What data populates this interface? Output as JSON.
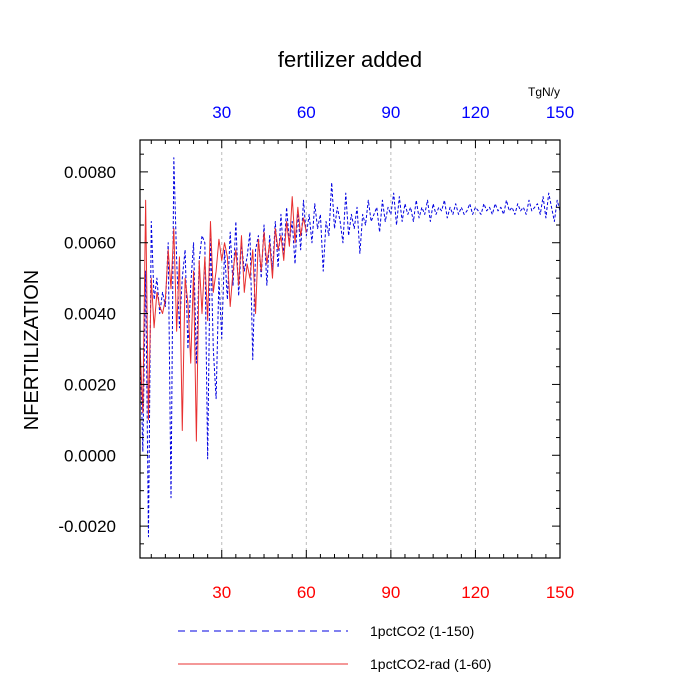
{
  "chart_data": {
    "type": "line",
    "title": "fertilizer added",
    "ylabel": "NFERTILIZATION",
    "top_axis_unit": "TgN/y",
    "xlim": [
      1,
      150
    ],
    "ylim": [
      -0.0029,
      0.0089
    ],
    "x_ticks": [
      30,
      60,
      90,
      120,
      150
    ],
    "y_ticks": [
      -0.002,
      0.0,
      0.002,
      0.004,
      0.006,
      0.008
    ],
    "y_tick_labels": [
      "-0.0020",
      "0.0000",
      "0.0020",
      "0.0040",
      "0.0060",
      "0.0080"
    ],
    "grid": "vertical dashed at x ticks",
    "colors": {
      "series1": "#0000e0",
      "series2": "#e83030",
      "bottom_ticks": "#ff0000",
      "top_ticks": "#0000ff",
      "grid": "#bbbbbb"
    },
    "series": [
      {
        "name": "1pctCO2 (1-150)",
        "style": "dashed",
        "x": [
          1,
          2,
          3,
          4,
          5,
          6,
          7,
          8,
          9,
          10,
          11,
          12,
          13,
          14,
          15,
          16,
          17,
          18,
          19,
          20,
          21,
          22,
          23,
          24,
          25,
          26,
          27,
          28,
          29,
          30,
          31,
          32,
          33,
          34,
          35,
          36,
          37,
          38,
          39,
          40,
          41,
          42,
          43,
          44,
          45,
          46,
          47,
          48,
          49,
          50,
          51,
          52,
          53,
          54,
          55,
          56,
          57,
          58,
          59,
          60,
          61,
          62,
          63,
          64,
          65,
          66,
          67,
          68,
          69,
          70,
          71,
          72,
          73,
          74,
          75,
          76,
          77,
          78,
          79,
          80,
          81,
          82,
          83,
          84,
          85,
          86,
          87,
          88,
          89,
          90,
          91,
          92,
          93,
          94,
          95,
          96,
          97,
          98,
          99,
          100,
          101,
          102,
          103,
          104,
          105,
          106,
          107,
          108,
          109,
          110,
          111,
          112,
          113,
          114,
          115,
          116,
          117,
          118,
          119,
          120,
          121,
          122,
          123,
          124,
          125,
          126,
          127,
          128,
          129,
          130,
          131,
          132,
          133,
          134,
          135,
          136,
          137,
          138,
          139,
          140,
          141,
          142,
          143,
          144,
          145,
          146,
          147,
          148,
          149,
          150
        ],
        "values": [
          0.0032,
          0.0001,
          0.0052,
          -0.0023,
          0.0066,
          0.0044,
          0.005,
          0.004,
          0.0046,
          0.0042,
          0.006,
          -0.0012,
          0.0084,
          0.0055,
          0.0036,
          0.005,
          0.0058,
          0.003,
          0.0048,
          0.006,
          0.0026,
          0.0055,
          0.0062,
          0.006,
          -0.0001,
          0.0063,
          0.003,
          0.0016,
          0.005,
          0.0033,
          0.0058,
          0.0044,
          0.0063,
          0.0048,
          0.0066,
          0.0045,
          0.006,
          0.0052,
          0.0056,
          0.0063,
          0.0027,
          0.0058,
          0.0062,
          0.005,
          0.0065,
          0.0048,
          0.0062,
          0.0052,
          0.0066,
          0.0053,
          0.0068,
          0.0056,
          0.007,
          0.006,
          0.0066,
          0.0054,
          0.0069,
          0.0058,
          0.0072,
          0.0062,
          0.0068,
          0.006,
          0.0071,
          0.0064,
          0.0068,
          0.0052,
          0.0066,
          0.0062,
          0.0077,
          0.0064,
          0.007,
          0.0066,
          0.006,
          0.0074,
          0.0062,
          0.0068,
          0.0064,
          0.007,
          0.0057,
          0.0068,
          0.0065,
          0.0072,
          0.0066,
          0.0068,
          0.007,
          0.0063,
          0.0072,
          0.0066,
          0.007,
          0.0068,
          0.0074,
          0.0065,
          0.0073,
          0.0066,
          0.0071,
          0.0068,
          0.007,
          0.0066,
          0.0072,
          0.0067,
          0.007,
          0.0068,
          0.0072,
          0.0066,
          0.0071,
          0.0068,
          0.007,
          0.0069,
          0.0072,
          0.0067,
          0.007,
          0.0068,
          0.0071,
          0.0068,
          0.007,
          0.0068,
          0.0069,
          0.0071,
          0.0068,
          0.007,
          0.0069,
          0.0068,
          0.0071,
          0.0069,
          0.007,
          0.0068,
          0.0071,
          0.0069,
          0.007,
          0.0068,
          0.0072,
          0.0069,
          0.007,
          0.0068,
          0.0071,
          0.0069,
          0.007,
          0.0068,
          0.0072,
          0.0069,
          0.007,
          0.0071,
          0.0068,
          0.0073,
          0.0067,
          0.0074,
          0.007,
          0.0066,
          0.0072,
          0.0069
        ],
        "color": "#0000e0"
      },
      {
        "name": "1pctCO2-rad (1-60)",
        "style": "solid",
        "x": [
          1,
          2,
          3,
          4,
          5,
          6,
          7,
          8,
          9,
          10,
          11,
          12,
          13,
          14,
          15,
          16,
          17,
          18,
          19,
          20,
          21,
          22,
          23,
          24,
          25,
          26,
          27,
          28,
          29,
          30,
          31,
          32,
          33,
          34,
          35,
          36,
          37,
          38,
          39,
          40,
          41,
          42,
          43,
          44,
          45,
          46,
          47,
          48,
          49,
          50,
          51,
          52,
          53,
          54,
          55,
          56,
          57,
          58,
          59,
          60
        ],
        "values": [
          0.0031,
          0.0012,
          0.0072,
          0.001,
          0.005,
          0.0036,
          0.0046,
          0.0042,
          0.004,
          0.0044,
          0.0058,
          0.0047,
          0.0064,
          0.0035,
          0.0056,
          0.0007,
          0.005,
          0.0043,
          0.0026,
          0.0052,
          0.0004,
          0.0055,
          0.004,
          0.0056,
          0.0038,
          0.0066,
          0.0046,
          0.0052,
          0.0061,
          0.0055,
          0.006,
          0.0056,
          0.0042,
          0.0052,
          0.0058,
          0.0048,
          0.0062,
          0.0046,
          0.0054,
          0.005,
          0.0058,
          0.004,
          0.0061,
          0.0052,
          0.0063,
          0.0054,
          0.006,
          0.005,
          0.0064,
          0.0058,
          0.0062,
          0.0055,
          0.0066,
          0.0059,
          0.0073,
          0.006,
          0.007,
          0.0062,
          0.0067,
          0.0063
        ],
        "color": "#e83030"
      }
    ]
  }
}
